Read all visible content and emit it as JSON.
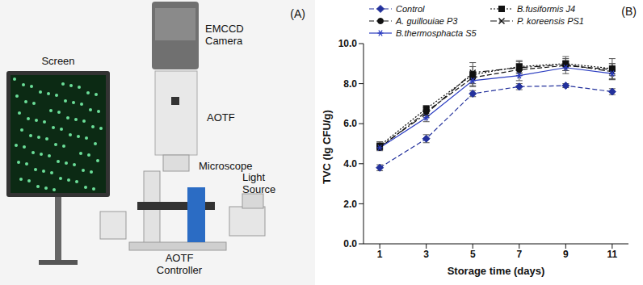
{
  "panel_a": {
    "label": "(A)",
    "labels": {
      "screen": [
        "Screen"
      ],
      "camera": [
        "EMCCD",
        "Camera"
      ],
      "aotf": [
        "AOTF"
      ],
      "microscope": [
        "Microscope"
      ],
      "light_source": [
        "Light",
        "Source"
      ],
      "controller": [
        "AOTF",
        "Controller"
      ]
    }
  },
  "chart_data": {
    "type": "line",
    "annotations": [
      "(B)"
    ],
    "x_label": "Storage time (days)",
    "y_label": "TVC (lg CFU/g)",
    "x": [
      1,
      3,
      5,
      7,
      9,
      11
    ],
    "xlim": [
      0.3,
      11.7
    ],
    "xticks": [
      1,
      3,
      5,
      7,
      9,
      11
    ],
    "ylim": [
      0,
      10
    ],
    "yticks": [
      {
        "value": 0,
        "label": "0.0"
      },
      {
        "value": 2,
        "label": "2.0"
      },
      {
        "value": 4,
        "label": "4.0"
      },
      {
        "value": 6,
        "label": "6.0"
      },
      {
        "value": 8,
        "label": "8.0"
      },
      {
        "value": 10,
        "label": "10.0"
      }
    ],
    "grid": false,
    "legend": "top",
    "series": [
      {
        "name": "Control",
        "color": "#23319c",
        "marker": "diamond",
        "line_style": "dashed",
        "values": [
          3.8,
          5.25,
          7.5,
          7.85,
          7.9,
          7.6
        ],
        "errors": [
          0.15,
          0.2,
          0.15,
          0.15,
          0.1,
          0.15
        ]
      },
      {
        "name": "B.fusiformis J4",
        "color": "#111111",
        "marker": "square",
        "line_style": "dotted",
        "values": [
          4.9,
          6.75,
          8.45,
          8.85,
          9.0,
          8.75
        ],
        "errors": [
          0.2,
          0.15,
          0.6,
          0.3,
          0.35,
          0.5
        ]
      },
      {
        "name": "A. guillouiae P3",
        "color": "#111111",
        "marker": "circle",
        "line_style": "dashed",
        "values": [
          4.8,
          6.6,
          8.3,
          8.7,
          8.9,
          8.7
        ],
        "errors": [
          0.15,
          0.2,
          0.3,
          0.3,
          0.25,
          0.3
        ]
      },
      {
        "name": "P. koreensis PS1",
        "color": "#111111",
        "marker": "x",
        "line_style": "dashdot",
        "values": [
          4.85,
          6.5,
          8.55,
          8.8,
          8.95,
          8.6
        ],
        "errors": [
          0.1,
          0.2,
          0.3,
          0.3,
          0.3,
          0.4
        ]
      },
      {
        "name": "B.thermosphacta S5",
        "color": "#2a3cc0",
        "marker": "asterisk",
        "line_style": "solid",
        "values": [
          4.8,
          6.3,
          8.15,
          8.4,
          8.8,
          8.5
        ],
        "errors": [
          0.1,
          0.2,
          0.25,
          0.25,
          0.3,
          0.3
        ]
      }
    ]
  }
}
